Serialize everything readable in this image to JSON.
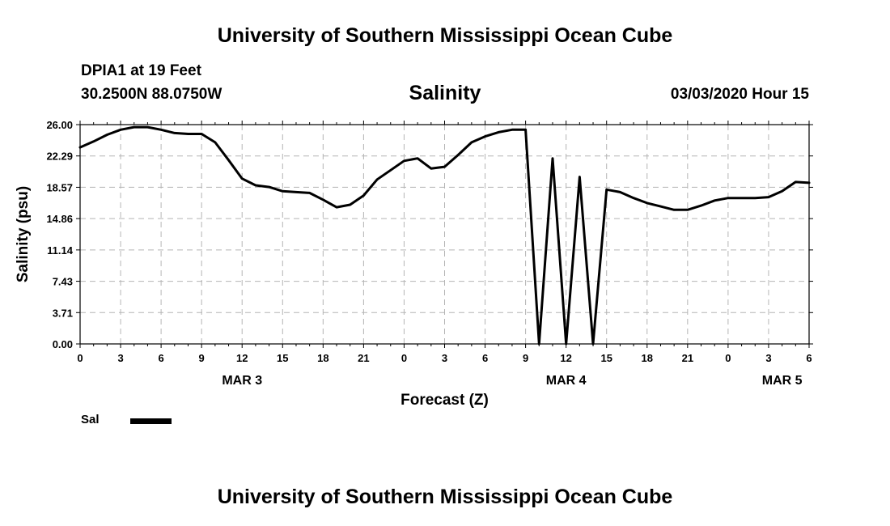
{
  "header": {
    "title": "University of Southern Mississippi Ocean Cube",
    "station": "DPIA1 at 19 Feet",
    "coords": "30.2500N 88.0750W",
    "timestamp": "03/03/2020 Hour 15"
  },
  "footer": {
    "title": "University of Southern Mississippi Ocean Cube"
  },
  "chart_data": {
    "type": "line",
    "title": "Salinity",
    "xlabel": "Forecast (Z)",
    "ylabel": "Salinity (psu)",
    "ylim": [
      0,
      26
    ],
    "xlim": [
      0,
      54
    ],
    "grid": true,
    "yticks": [
      "0.00",
      "3.71",
      "7.43",
      "11.14",
      "14.86",
      "18.57",
      "22.29",
      "26.00"
    ],
    "xticks": [
      {
        "x": 0,
        "label": "0"
      },
      {
        "x": 3,
        "label": "3"
      },
      {
        "x": 6,
        "label": "6"
      },
      {
        "x": 9,
        "label": "9"
      },
      {
        "x": 12,
        "label": "12"
      },
      {
        "x": 15,
        "label": "15"
      },
      {
        "x": 18,
        "label": "18"
      },
      {
        "x": 21,
        "label": "21"
      },
      {
        "x": 24,
        "label": "0"
      },
      {
        "x": 27,
        "label": "3"
      },
      {
        "x": 30,
        "label": "6"
      },
      {
        "x": 33,
        "label": "9"
      },
      {
        "x": 36,
        "label": "12"
      },
      {
        "x": 39,
        "label": "15"
      },
      {
        "x": 42,
        "label": "18"
      },
      {
        "x": 45,
        "label": "21"
      },
      {
        "x": 48,
        "label": "0"
      },
      {
        "x": 51,
        "label": "3"
      },
      {
        "x": 54,
        "label": "6"
      }
    ],
    "day_labels": [
      {
        "x": 12,
        "label": "MAR 3"
      },
      {
        "x": 36,
        "label": "MAR 4"
      },
      {
        "x": 52,
        "label": "MAR 5"
      }
    ],
    "legend": {
      "placement": "bottom-left",
      "entries": [
        "Sal"
      ]
    },
    "series": [
      {
        "name": "Sal",
        "color": "#000000",
        "x": [
          0,
          1,
          2,
          3,
          4,
          5,
          6,
          7,
          8,
          9,
          10,
          11,
          12,
          13,
          14,
          15,
          16,
          17,
          18,
          19,
          20,
          21,
          22,
          23,
          24,
          25,
          26,
          27,
          28,
          29,
          30,
          31,
          32,
          33,
          34,
          35,
          36,
          37,
          38,
          39,
          40,
          41,
          42,
          43,
          44,
          45,
          46,
          47,
          48,
          49,
          50,
          51,
          52,
          53,
          54
        ],
        "y": [
          23.3,
          24.0,
          24.8,
          25.4,
          25.7,
          25.7,
          25.4,
          25.0,
          24.9,
          24.9,
          23.9,
          21.8,
          19.6,
          18.8,
          18.6,
          18.1,
          18.0,
          17.9,
          17.1,
          16.2,
          16.5,
          17.6,
          19.5,
          20.6,
          21.7,
          22.0,
          20.8,
          21.0,
          22.4,
          23.9,
          24.6,
          25.1,
          25.4,
          25.4,
          0.0,
          22.0,
          0.0,
          19.8,
          0.0,
          18.3,
          18.0,
          17.3,
          16.7,
          16.3,
          15.9,
          15.9,
          16.4,
          17.0,
          17.3,
          17.3,
          17.3,
          17.4,
          18.1,
          19.2,
          19.1
        ]
      }
    ]
  }
}
